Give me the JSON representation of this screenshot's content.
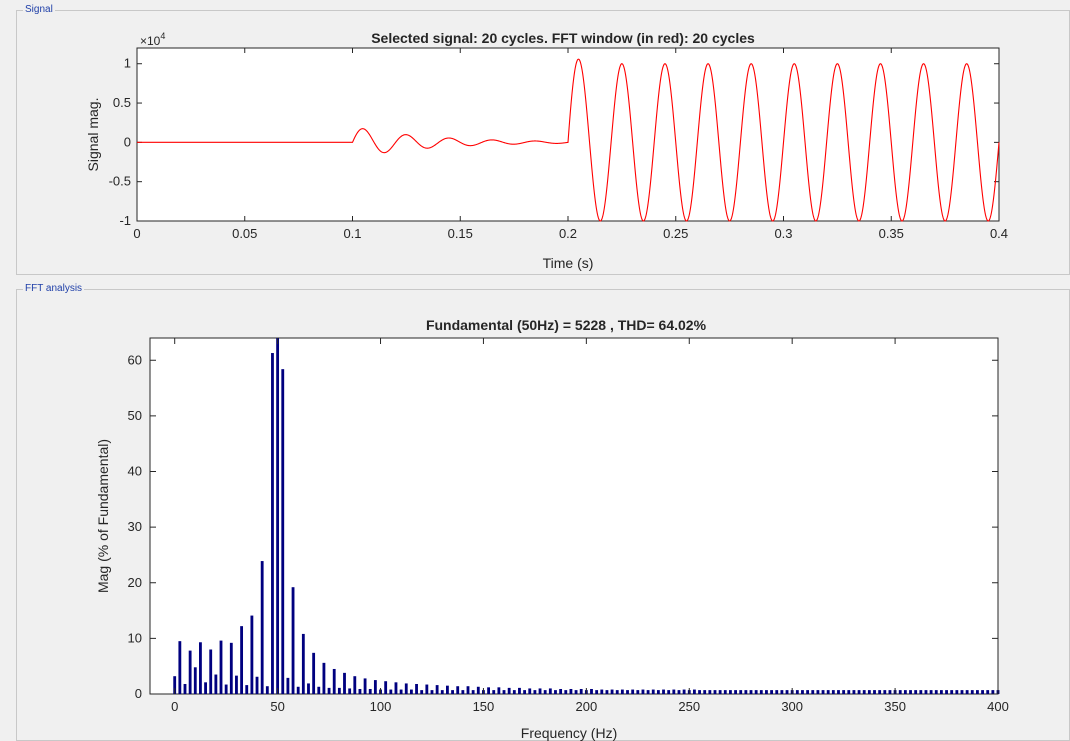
{
  "window": {
    "signal_panel_title": "Signal",
    "fft_panel_title": "FFT analysis"
  },
  "colors": {
    "signal": "#ff0000",
    "bars": "#00007f",
    "axes": "#262626",
    "panel_title": "#1f3fa8"
  },
  "chart_data": [
    {
      "type": "line",
      "title": "Selected signal: 20 cycles. FFT window (in red): 20 cycles",
      "xlabel": "Time (s)",
      "ylabel": "Signal mag.",
      "exponent_label": "×10",
      "exponent_power": "4",
      "xlim": [
        0,
        0.4
      ],
      "ylim": [
        -1,
        1.2
      ],
      "x_ticks": [
        0,
        0.05,
        0.1,
        0.15,
        0.2,
        0.25,
        0.3,
        0.35,
        0.4
      ],
      "x_tick_labels": [
        "0",
        "0.05",
        "0.1",
        "0.15",
        "0.2",
        "0.25",
        "0.3",
        "0.35",
        "0.4"
      ],
      "y_ticks": [
        -1,
        -0.5,
        0,
        0.5,
        1
      ],
      "y_tick_labels": [
        "-1",
        "-0.5",
        "0",
        "0.5",
        "1"
      ],
      "segments": [
        {
          "t_start": 0.0,
          "t_end": 0.1,
          "kind": "flat",
          "value": 0
        },
        {
          "t_start": 0.1,
          "t_end": 0.2,
          "kind": "damped_oscillation",
          "peak": 0.2,
          "period": 0.02
        },
        {
          "t_start": 0.2,
          "t_end": 0.4,
          "kind": "sine",
          "amplitude": 1.0,
          "peak_first": 1.2,
          "frequency_hz": 50
        }
      ],
      "series": [
        {
          "color": "#ff0000"
        }
      ]
    },
    {
      "type": "bar",
      "title": "Fundamental (50Hz) = 5228 , THD= 64.02%",
      "xlabel": "Frequency (Hz)",
      "ylabel": "Mag (% of Fundamental)",
      "xlim": [
        -12,
        400
      ],
      "ylim": [
        0,
        64
      ],
      "x_ticks": [
        0,
        50,
        100,
        150,
        200,
        250,
        300,
        350,
        400
      ],
      "x_tick_labels": [
        "0",
        "50",
        "100",
        "150",
        "200",
        "250",
        "300",
        "350",
        "400"
      ],
      "y_ticks": [
        0,
        10,
        20,
        30,
        40,
        50,
        60
      ],
      "y_tick_labels": [
        "0",
        "10",
        "20",
        "30",
        "40",
        "50",
        "60"
      ],
      "bar_spacing_hz": 2.5,
      "frequencies_start": 0,
      "values": [
        3.2,
        9.5,
        1.8,
        7.8,
        4.8,
        9.3,
        2.1,
        8.0,
        3.5,
        9.6,
        1.7,
        9.2,
        3.3,
        12.2,
        1.6,
        14.1,
        3.1,
        23.9,
        1.4,
        61.3,
        64.0,
        58.4,
        2.9,
        19.2,
        1.3,
        10.8,
        1.9,
        7.4,
        1.3,
        5.6,
        1.1,
        4.5,
        1.1,
        3.8,
        1.0,
        3.2,
        0.9,
        2.8,
        0.9,
        2.5,
        0.8,
        2.3,
        0.8,
        2.1,
        0.8,
        1.9,
        0.8,
        1.8,
        0.7,
        1.7,
        0.7,
        1.6,
        0.7,
        1.5,
        0.7,
        1.4,
        0.7,
        1.4,
        0.7,
        1.3,
        0.7,
        1.2,
        0.7,
        1.2,
        0.7,
        1.1,
        0.7,
        1.1,
        0.7,
        1.0,
        0.7,
        1.0,
        0.7,
        1.0,
        0.7,
        0.9,
        0.7,
        0.9,
        0.7,
        0.9,
        0.7,
        0.9,
        0.7,
        0.8,
        0.7,
        0.8,
        0.7,
        0.8,
        0.7,
        0.8,
        0.7,
        0.8,
        0.7,
        0.8,
        0.7,
        0.8,
        0.7,
        0.8,
        0.7,
        0.8,
        0.7,
        0.8,
        0.7,
        0.7,
        0.7,
        0.7,
        0.7,
        0.7,
        0.7,
        0.7,
        0.7,
        0.7,
        0.7,
        0.7,
        0.7,
        0.7,
        0.7,
        0.7,
        0.7,
        0.7,
        0.7,
        0.7,
        0.7,
        0.7,
        0.7,
        0.7,
        0.7,
        0.7,
        0.7,
        0.7,
        0.7,
        0.7,
        0.7,
        0.7,
        0.7,
        0.7,
        0.7,
        0.7,
        0.7,
        0.7,
        0.7,
        0.7,
        0.7,
        0.7,
        0.7,
        0.7,
        0.7,
        0.7,
        0.7,
        0.7,
        0.7,
        0.7,
        0.7,
        0.7,
        0.7,
        0.7,
        0.7,
        0.7,
        0.7,
        0.7,
        0.7
      ],
      "series": [
        {
          "color": "#00007f"
        }
      ]
    }
  ]
}
